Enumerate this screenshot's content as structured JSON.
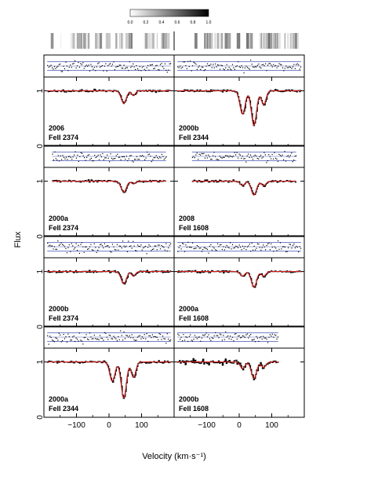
{
  "chart_data": {
    "type": "line",
    "title": "",
    "xlabel": "Velocity (km·s⁻¹)",
    "ylabel": "Flux",
    "xlim": [
      -200,
      200
    ],
    "ylim": [
      0,
      1.25
    ],
    "x_ticks": [
      -100,
      0,
      100
    ],
    "y_ticks": [
      0,
      1
    ],
    "colorbar": {
      "ticks": [
        "0.0",
        "0.2",
        "0.4",
        "0.6",
        "0.8",
        "1.0"
      ]
    },
    "panels": [
      {
        "epoch": "2006",
        "ion": "FeII",
        "wavelength": "2374",
        "column": 0,
        "row": 0,
        "v_range": [
          -190,
          190
        ],
        "data_range": [
          -190,
          190
        ],
        "absorption": [
          [
            45,
            0.22,
            8
          ],
          [
            75,
            0.08,
            6
          ]
        ]
      },
      {
        "epoch": "2000b",
        "ion": "FeII",
        "wavelength": "2344",
        "column": 1,
        "row": 0,
        "v_range": [
          -190,
          190
        ],
        "data_range": [
          -190,
          190
        ],
        "absorption": [
          [
            10,
            0.42,
            8
          ],
          [
            45,
            0.62,
            8
          ],
          [
            75,
            0.25,
            7
          ]
        ]
      },
      {
        "epoch": "2000a",
        "ion": "FeII",
        "wavelength": "2374",
        "column": 0,
        "row": 1,
        "v_range": [
          -190,
          190
        ],
        "data_range": [
          -175,
          175
        ],
        "absorption": [
          [
            45,
            0.2,
            8
          ],
          [
            75,
            0.05,
            6
          ]
        ]
      },
      {
        "epoch": "2008",
        "ion": "FeII",
        "wavelength": "1608",
        "column": 1,
        "row": 1,
        "v_range": [
          -190,
          190
        ],
        "data_range": [
          -145,
          175
        ],
        "absorption": [
          [
            10,
            0.08,
            7
          ],
          [
            45,
            0.25,
            8
          ],
          [
            75,
            0.08,
            7
          ]
        ]
      },
      {
        "epoch": "2000b",
        "ion": "FeII",
        "wavelength": "2374",
        "column": 0,
        "row": 2,
        "v_range": [
          -190,
          190
        ],
        "data_range": [
          -190,
          190
        ],
        "absorption": [
          [
            45,
            0.22,
            8
          ],
          [
            75,
            0.08,
            6
          ]
        ]
      },
      {
        "epoch": "2000a",
        "ion": "FeII",
        "wavelength": "1608",
        "column": 1,
        "row": 2,
        "v_range": [
          -190,
          190
        ],
        "data_range": [
          -190,
          190
        ],
        "absorption": [
          [
            10,
            0.08,
            7
          ],
          [
            45,
            0.28,
            8
          ],
          [
            75,
            0.08,
            7
          ]
        ]
      },
      {
        "epoch": "2000a",
        "ion": "FeII",
        "wavelength": "2344",
        "column": 0,
        "row": 3,
        "v_range": [
          -190,
          190
        ],
        "data_range": [
          -190,
          190
        ],
        "absorption": [
          [
            10,
            0.35,
            8
          ],
          [
            45,
            0.65,
            8
          ],
          [
            75,
            0.28,
            7
          ]
        ]
      },
      {
        "epoch": "2000b",
        "ion": "FeII",
        "wavelength": "1608",
        "column": 1,
        "row": 3,
        "v_range": [
          -190,
          190
        ],
        "data_range": [
          -190,
          120
        ],
        "absorption": [
          [
            10,
            0.12,
            7
          ],
          [
            45,
            0.3,
            8
          ],
          [
            75,
            0.1,
            7
          ]
        ]
      }
    ]
  }
}
